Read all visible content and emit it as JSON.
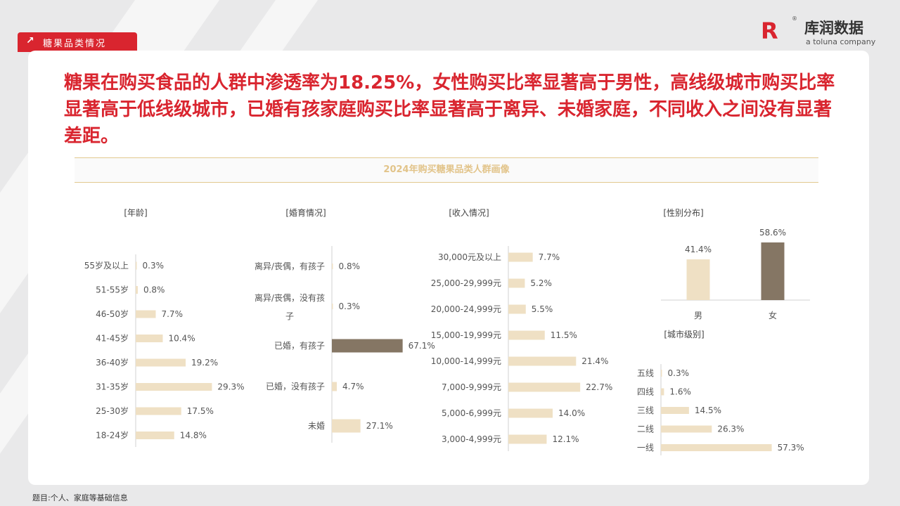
{
  "section_tab": "糖果品类情况",
  "logo": {
    "mark": "R",
    "name": "库润数据",
    "sub": "a toluna company",
    "reg": "®"
  },
  "headline": "糖果在购买食品的人群中渗透率为18.25%，女性购买比率显著高于男性，高线级城市购买比率显著高于低线级城市，已婚有孩家庭购买比率显著高于离异、未婚家庭，不同收入之间没有显著差距。",
  "chart_title": "2024年购买糖果品类人群画像",
  "footnote": "题目:个人、家庭等基础信息",
  "colors": {
    "accent": "#d9252f",
    "bar": "#efe0c4",
    "highlight": "#857664",
    "axis": "#d0d0d0"
  },
  "chart_data": [
    {
      "id": "age",
      "type": "bar",
      "orientation": "horizontal",
      "title": "[年龄]",
      "categories": [
        "55岁及以上",
        "51-55岁",
        "46-50岁",
        "41-45岁",
        "36-40岁",
        "31-35岁",
        "25-30岁",
        "18-24岁"
      ],
      "values": [
        0.3,
        0.8,
        7.7,
        10.4,
        19.2,
        29.3,
        17.5,
        14.8
      ],
      "labels": [
        "0.3%",
        "0.8%",
        "7.7%",
        "10.4%",
        "19.2%",
        "29.3%",
        "17.5%",
        "14.8%"
      ]
    },
    {
      "id": "marriage",
      "type": "bar",
      "orientation": "horizontal",
      "title": "[婚育情况]",
      "categories": [
        [
          "离异/丧偶，有孩子"
        ],
        [
          "离异/丧偶，没有孩",
          "子"
        ],
        [
          "已婚，有孩子"
        ],
        [
          "已婚，没有孩子"
        ],
        [
          "未婚"
        ]
      ],
      "values": [
        0.8,
        0.3,
        67.1,
        4.7,
        27.1
      ],
      "labels": [
        "0.8%",
        "0.3%",
        "67.1%",
        "4.7%",
        "27.1%"
      ],
      "highlight_index": 2
    },
    {
      "id": "income",
      "type": "bar",
      "orientation": "horizontal",
      "title": "[收入情况]",
      "categories": [
        "30,000元及以上",
        "25,000-29,999元",
        "20,000-24,999元",
        "15,000-19,999元",
        "10,000-14,999元",
        "7,000-9,999元",
        "5,000-6,999元",
        "3,000-4,999元"
      ],
      "values": [
        7.7,
        5.2,
        5.5,
        11.5,
        21.4,
        22.7,
        14.0,
        12.1
      ],
      "labels": [
        "7.7%",
        "5.2%",
        "5.5%",
        "11.5%",
        "21.4%",
        "22.7%",
        "14.0%",
        "12.1%"
      ]
    },
    {
      "id": "gender",
      "type": "bar",
      "orientation": "vertical",
      "title": "[性别分布]",
      "categories": [
        "男",
        "女"
      ],
      "values": [
        41.4,
        58.6
      ],
      "labels": [
        "41.4%",
        "58.6%"
      ],
      "highlight_index": 1
    },
    {
      "id": "city",
      "type": "bar",
      "orientation": "horizontal",
      "title": "[城市级别]",
      "categories": [
        "五线",
        "四线",
        "三线",
        "二线",
        "一线"
      ],
      "values": [
        0.3,
        1.6,
        14.5,
        26.3,
        57.3
      ],
      "labels": [
        "0.3%",
        "1.6%",
        "14.5%",
        "26.3%",
        "57.3%"
      ]
    }
  ]
}
